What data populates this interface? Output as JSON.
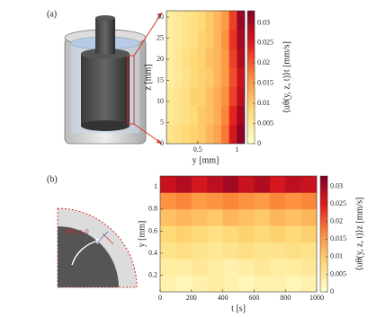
{
  "panel_labels": [
    "(a)",
    "(b)"
  ],
  "chart_data": [
    {
      "type": "heatmap",
      "xlabel": "y [mm]",
      "ylabel": "z [mm]",
      "colorbar_label": "⟨uθ(y, z, t)⟩t [mm/s]",
      "x": [
        0.15,
        0.25,
        0.35,
        0.45,
        0.55,
        0.65,
        0.75,
        0.85,
        0.95,
        1.05
      ],
      "y": [
        2.25,
        6.75,
        11.25,
        15.75,
        20.25,
        24.75,
        29.25
      ],
      "values": [
        [
          0.006,
          0.007,
          0.008,
          0.009,
          0.01,
          0.012,
          0.014,
          0.018,
          0.026,
          0.032
        ],
        [
          0.005,
          0.006,
          0.007,
          0.008,
          0.01,
          0.011,
          0.013,
          0.017,
          0.024,
          0.03
        ],
        [
          0.005,
          0.006,
          0.007,
          0.009,
          0.009,
          0.011,
          0.013,
          0.016,
          0.022,
          0.028
        ],
        [
          0.004,
          0.005,
          0.006,
          0.008,
          0.009,
          0.01,
          0.012,
          0.015,
          0.021,
          0.027
        ],
        [
          0.004,
          0.005,
          0.007,
          0.008,
          0.009,
          0.011,
          0.012,
          0.015,
          0.022,
          0.029
        ],
        [
          0.004,
          0.005,
          0.006,
          0.007,
          0.009,
          0.01,
          0.012,
          0.016,
          0.023,
          0.03
        ],
        [
          0.004,
          0.005,
          0.006,
          0.007,
          0.008,
          0.01,
          0.012,
          0.015,
          0.022,
          0.031
        ]
      ],
      "xlim": [
        0.1,
        1.1
      ],
      "xticks": [
        0.5,
        1
      ],
      "ylim": [
        0,
        31.5
      ],
      "yticks": [
        0,
        5,
        10,
        15,
        20,
        25,
        30
      ],
      "clim": [
        0,
        0.033
      ],
      "colorbar_ticks": [
        0,
        0.005,
        0.01,
        0.015,
        0.02,
        0.025,
        0.03
      ],
      "colormap": [
        "#ffffcc",
        "#fed976",
        "#fd8d3c",
        "#e31a1c",
        "#800026"
      ]
    },
    {
      "type": "heatmap",
      "xlabel": "t [s]",
      "ylabel": "y [mm]",
      "colorbar_label": "⟨uθ(y, z, t)⟩z [mm/s]",
      "diagram_label": "uθ(y, z, t)",
      "x": [
        50,
        150,
        250,
        350,
        450,
        550,
        650,
        750,
        850,
        950
      ],
      "y": [
        0.125,
        0.275,
        0.425,
        0.575,
        0.725,
        0.875,
        1.025
      ],
      "values": [
        [
          0.003,
          0.002,
          0.003,
          0.004,
          0.003,
          0.002,
          0.003,
          0.003,
          0.002,
          0.003
        ],
        [
          0.004,
          0.004,
          0.005,
          0.004,
          0.003,
          0.004,
          0.005,
          0.004,
          0.004,
          0.005
        ],
        [
          0.006,
          0.007,
          0.006,
          0.005,
          0.006,
          0.007,
          0.006,
          0.006,
          0.007,
          0.006
        ],
        [
          0.008,
          0.009,
          0.008,
          0.007,
          0.008,
          0.009,
          0.008,
          0.009,
          0.008,
          0.009
        ],
        [
          0.011,
          0.012,
          0.011,
          0.01,
          0.012,
          0.011,
          0.01,
          0.012,
          0.011,
          0.012
        ],
        [
          0.016,
          0.017,
          0.015,
          0.016,
          0.017,
          0.016,
          0.015,
          0.017,
          0.016,
          0.017
        ],
        [
          0.027,
          0.029,
          0.026,
          0.028,
          0.03,
          0.027,
          0.029,
          0.026,
          0.028,
          0.027
        ]
      ],
      "xlim": [
        0,
        1000
      ],
      "xticks": [
        0,
        200,
        400,
        600,
        800,
        1000
      ],
      "ylim": [
        0.05,
        1.1
      ],
      "yticks": [
        0.2,
        0.4,
        0.6,
        0.8,
        1
      ],
      "clim": [
        0,
        0.033
      ],
      "colorbar_ticks": [
        0,
        0.005,
        0.01,
        0.015,
        0.02,
        0.025,
        0.03
      ],
      "colormap": [
        "#ffffcc",
        "#fed976",
        "#fd8d3c",
        "#e31a1c",
        "#800026"
      ]
    }
  ]
}
